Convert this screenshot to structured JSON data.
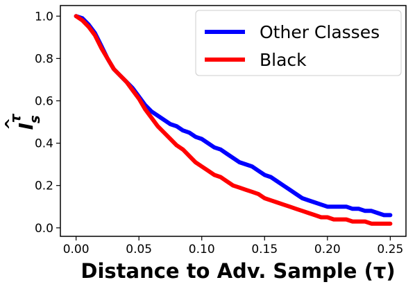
{
  "chart_data": {
    "type": "line",
    "xlabel": "Distance to Adv. Sample (τ)",
    "ylabel": "I",
    "ylabel_sub": "s",
    "ylabel_sup": "τ",
    "xlim": [
      -0.0125,
      0.2625
    ],
    "ylim": [
      -0.04,
      1.05
    ],
    "xticks": [
      0.0,
      0.05,
      0.1,
      0.15,
      0.2,
      0.25
    ],
    "xtick_labels": [
      "0.00",
      "0.05",
      "0.10",
      "0.15",
      "0.20",
      "0.25"
    ],
    "yticks": [
      0.0,
      0.2,
      0.4,
      0.6,
      0.8,
      1.0
    ],
    "ytick_labels": [
      "0.0",
      "0.2",
      "0.4",
      "0.6",
      "0.8",
      "1.0"
    ],
    "grid": false,
    "legend_position": "top-right",
    "series": [
      {
        "name": "Other Classes",
        "color": "#0000ff",
        "points": [
          [
            0.0,
            1.0
          ],
          [
            0.005,
            0.99
          ],
          [
            0.01,
            0.96
          ],
          [
            0.015,
            0.92
          ],
          [
            0.02,
            0.86
          ],
          [
            0.025,
            0.8
          ],
          [
            0.03,
            0.75
          ],
          [
            0.035,
            0.72
          ],
          [
            0.04,
            0.69
          ],
          [
            0.045,
            0.66
          ],
          [
            0.05,
            0.62
          ],
          [
            0.055,
            0.58
          ],
          [
            0.06,
            0.55
          ],
          [
            0.065,
            0.53
          ],
          [
            0.07,
            0.51
          ],
          [
            0.075,
            0.49
          ],
          [
            0.08,
            0.48
          ],
          [
            0.085,
            0.46
          ],
          [
            0.09,
            0.45
          ],
          [
            0.095,
            0.43
          ],
          [
            0.1,
            0.42
          ],
          [
            0.105,
            0.4
          ],
          [
            0.11,
            0.38
          ],
          [
            0.115,
            0.37
          ],
          [
            0.12,
            0.35
          ],
          [
            0.125,
            0.33
          ],
          [
            0.13,
            0.31
          ],
          [
            0.135,
            0.3
          ],
          [
            0.14,
            0.29
          ],
          [
            0.145,
            0.27
          ],
          [
            0.15,
            0.25
          ],
          [
            0.155,
            0.24
          ],
          [
            0.16,
            0.22
          ],
          [
            0.165,
            0.2
          ],
          [
            0.17,
            0.18
          ],
          [
            0.175,
            0.16
          ],
          [
            0.18,
            0.14
          ],
          [
            0.185,
            0.13
          ],
          [
            0.19,
            0.12
          ],
          [
            0.195,
            0.11
          ],
          [
            0.2,
            0.1
          ],
          [
            0.205,
            0.1
          ],
          [
            0.21,
            0.1
          ],
          [
            0.215,
            0.1
          ],
          [
            0.22,
            0.09
          ],
          [
            0.225,
            0.09
          ],
          [
            0.23,
            0.08
          ],
          [
            0.235,
            0.08
          ],
          [
            0.24,
            0.07
          ],
          [
            0.245,
            0.06
          ],
          [
            0.25,
            0.06
          ]
        ]
      },
      {
        "name": "Black",
        "color": "#ff0000",
        "points": [
          [
            0.0,
            1.0
          ],
          [
            0.005,
            0.98
          ],
          [
            0.01,
            0.95
          ],
          [
            0.015,
            0.91
          ],
          [
            0.02,
            0.85
          ],
          [
            0.025,
            0.8
          ],
          [
            0.03,
            0.75
          ],
          [
            0.035,
            0.72
          ],
          [
            0.04,
            0.69
          ],
          [
            0.045,
            0.65
          ],
          [
            0.05,
            0.61
          ],
          [
            0.055,
            0.56
          ],
          [
            0.06,
            0.52
          ],
          [
            0.065,
            0.48
          ],
          [
            0.07,
            0.45
          ],
          [
            0.075,
            0.42
          ],
          [
            0.08,
            0.39
          ],
          [
            0.085,
            0.37
          ],
          [
            0.09,
            0.34
          ],
          [
            0.095,
            0.31
          ],
          [
            0.1,
            0.29
          ],
          [
            0.105,
            0.27
          ],
          [
            0.11,
            0.25
          ],
          [
            0.115,
            0.24
          ],
          [
            0.12,
            0.22
          ],
          [
            0.125,
            0.2
          ],
          [
            0.13,
            0.19
          ],
          [
            0.135,
            0.18
          ],
          [
            0.14,
            0.17
          ],
          [
            0.145,
            0.16
          ],
          [
            0.15,
            0.14
          ],
          [
            0.155,
            0.13
          ],
          [
            0.16,
            0.12
          ],
          [
            0.165,
            0.11
          ],
          [
            0.17,
            0.1
          ],
          [
            0.175,
            0.09
          ],
          [
            0.18,
            0.08
          ],
          [
            0.185,
            0.07
          ],
          [
            0.19,
            0.06
          ],
          [
            0.195,
            0.05
          ],
          [
            0.2,
            0.05
          ],
          [
            0.205,
            0.04
          ],
          [
            0.21,
            0.04
          ],
          [
            0.215,
            0.04
          ],
          [
            0.22,
            0.03
          ],
          [
            0.225,
            0.03
          ],
          [
            0.23,
            0.03
          ],
          [
            0.235,
            0.02
          ],
          [
            0.24,
            0.02
          ],
          [
            0.245,
            0.02
          ],
          [
            0.25,
            0.02
          ]
        ]
      }
    ]
  }
}
